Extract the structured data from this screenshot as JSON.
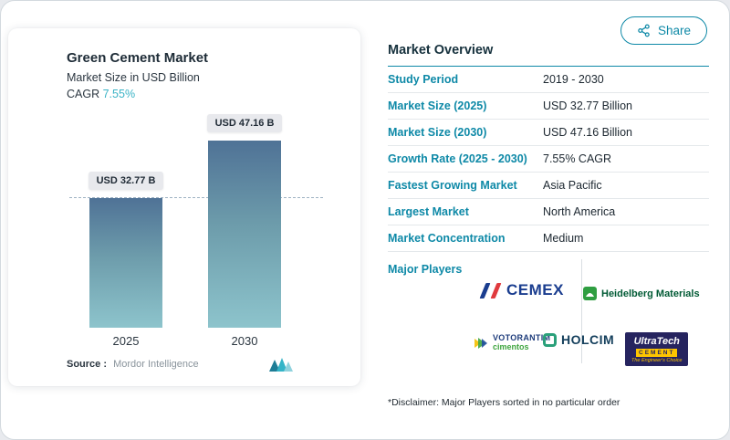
{
  "share": {
    "label": "Share"
  },
  "left_card": {
    "title": "Green Cement Market",
    "subtitle": "Market Size in USD Billion",
    "cagr_label": "CAGR",
    "cagr_value": "7.55%",
    "source_label": "Source :",
    "source_value": "Mordor Intelligence"
  },
  "chart_data": {
    "type": "bar",
    "categories": [
      "2025",
      "2030"
    ],
    "values": [
      32.77,
      47.16
    ],
    "bar_labels": [
      "USD 32.77 B",
      "USD 47.16 B"
    ],
    "title": "Green Cement Market",
    "xlabel": "",
    "ylabel": "Market Size in USD Billion",
    "ylim": [
      0,
      50
    ],
    "reference_line": 32.77,
    "grid": false,
    "legend": "none"
  },
  "overview": {
    "title": "Market Overview",
    "rows": [
      {
        "label": "Study Period",
        "value": "2019 - 2030"
      },
      {
        "label": "Market Size (2025)",
        "value": "USD 32.77 Billion"
      },
      {
        "label": "Market Size (2030)",
        "value": "USD 47.16 Billion"
      },
      {
        "label": "Growth Rate (2025 - 2030)",
        "value": "7.55% CAGR"
      },
      {
        "label": "Fastest Growing Market",
        "value": "Asia Pacific"
      },
      {
        "label": "Largest Market",
        "value": "North America"
      },
      {
        "label": "Market Concentration",
        "value": "Medium"
      }
    ],
    "major_players_label": "Major Players",
    "players": {
      "cemex": "CEMEX",
      "heidelberg": "Heidelberg Materials",
      "votorantim_top": "VOTORANTIM",
      "votorantim_bottom": "cimentos",
      "holcim": "HOLCIM",
      "ultratech_name": "UltraTech",
      "ultratech_cement": "CEMENT",
      "ultratech_tagline": "The Engineer's Choice"
    },
    "disclaimer": "*Disclaimer: Major Players sorted in no particular order"
  },
  "colors": {
    "accent": "#0e89a7",
    "cagr_value": "#3ab3c6",
    "bar_gradient_top": "#4f7296",
    "bar_gradient_bottom": "#8dc4cc",
    "dashed_line": "#9eb2c2",
    "value_pill_bg": "#e8e9ed"
  }
}
